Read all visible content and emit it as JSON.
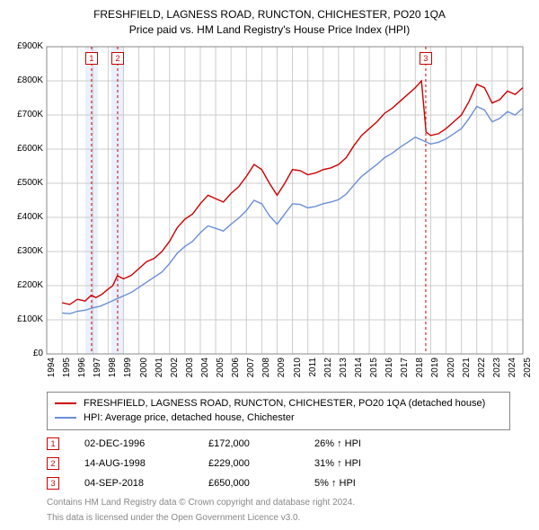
{
  "title1": "FRESHFIELD, LAGNESS ROAD, RUNCTON, CHICHESTER, PO20 1QA",
  "title2": "Price paid vs. HM Land Registry's House Price Index (HPI)",
  "chart": {
    "type": "line",
    "background_color": "#ffffff",
    "grid_color": "#cccccc",
    "yaxis": {
      "min": 0,
      "max": 900,
      "step": 100,
      "labels": [
        "£0",
        "£100K",
        "£200K",
        "£300K",
        "£400K",
        "£500K",
        "£600K",
        "£700K",
        "£800K",
        "£900K"
      ]
    },
    "xaxis": {
      "min": 1994,
      "max": 2025,
      "step": 1,
      "labels": [
        "1994",
        "1995",
        "1996",
        "1997",
        "1998",
        "1999",
        "2000",
        "2001",
        "2002",
        "2003",
        "2004",
        "2005",
        "2006",
        "2007",
        "2008",
        "2009",
        "2010",
        "2011",
        "2012",
        "2013",
        "2014",
        "2015",
        "2016",
        "2017",
        "2018",
        "2019",
        "2020",
        "2021",
        "2022",
        "2023",
        "2024",
        "2025"
      ]
    },
    "band_fill": "#e8eefc",
    "event_line_color": "#cc0000",
    "event_line_dash": "3,3",
    "series": [
      {
        "name": "red",
        "color": "#cc0000",
        "width": 1.4,
        "points": [
          [
            1995.0,
            150
          ],
          [
            1995.5,
            145
          ],
          [
            1996.0,
            160
          ],
          [
            1996.5,
            155
          ],
          [
            1996.9,
            172
          ],
          [
            1997.2,
            165
          ],
          [
            1997.6,
            175
          ],
          [
            1998.0,
            190
          ],
          [
            1998.3,
            200
          ],
          [
            1998.6,
            229
          ],
          [
            1999.0,
            220
          ],
          [
            1999.5,
            230
          ],
          [
            2000.0,
            250
          ],
          [
            2000.5,
            270
          ],
          [
            2001.0,
            280
          ],
          [
            2001.5,
            300
          ],
          [
            2002.0,
            330
          ],
          [
            2002.5,
            370
          ],
          [
            2003.0,
            395
          ],
          [
            2003.5,
            410
          ],
          [
            2004.0,
            440
          ],
          [
            2004.5,
            465
          ],
          [
            2005.0,
            455
          ],
          [
            2005.5,
            445
          ],
          [
            2006.0,
            470
          ],
          [
            2006.5,
            490
          ],
          [
            2007.0,
            520
          ],
          [
            2007.5,
            555
          ],
          [
            2008.0,
            540
          ],
          [
            2008.5,
            500
          ],
          [
            2009.0,
            465
          ],
          [
            2009.5,
            500
          ],
          [
            2010.0,
            540
          ],
          [
            2010.5,
            537
          ],
          [
            2011.0,
            525
          ],
          [
            2011.5,
            530
          ],
          [
            2012.0,
            540
          ],
          [
            2012.5,
            545
          ],
          [
            2013.0,
            555
          ],
          [
            2013.5,
            575
          ],
          [
            2014.0,
            610
          ],
          [
            2014.5,
            640
          ],
          [
            2015.0,
            660
          ],
          [
            2015.5,
            680
          ],
          [
            2016.0,
            705
          ],
          [
            2016.5,
            720
          ],
          [
            2017.0,
            740
          ],
          [
            2017.5,
            760
          ],
          [
            2018.0,
            780
          ],
          [
            2018.4,
            800
          ],
          [
            2018.7,
            650
          ],
          [
            2019.0,
            640
          ],
          [
            2019.5,
            645
          ],
          [
            2020.0,
            660
          ],
          [
            2020.5,
            680
          ],
          [
            2021.0,
            700
          ],
          [
            2021.5,
            740
          ],
          [
            2022.0,
            790
          ],
          [
            2022.5,
            780
          ],
          [
            2023.0,
            735
          ],
          [
            2023.5,
            745
          ],
          [
            2024.0,
            770
          ],
          [
            2024.5,
            760
          ],
          [
            2025.0,
            780
          ]
        ]
      },
      {
        "name": "blue",
        "color": "#6a8fd8",
        "width": 1.4,
        "points": [
          [
            1995.0,
            120
          ],
          [
            1995.5,
            118
          ],
          [
            1996.0,
            125
          ],
          [
            1996.5,
            128
          ],
          [
            1997.0,
            135
          ],
          [
            1997.5,
            140
          ],
          [
            1998.0,
            150
          ],
          [
            1998.5,
            160
          ],
          [
            1999.0,
            170
          ],
          [
            1999.5,
            180
          ],
          [
            2000.0,
            195
          ],
          [
            2000.5,
            210
          ],
          [
            2001.0,
            225
          ],
          [
            2001.5,
            240
          ],
          [
            2002.0,
            265
          ],
          [
            2002.5,
            295
          ],
          [
            2003.0,
            315
          ],
          [
            2003.5,
            330
          ],
          [
            2004.0,
            355
          ],
          [
            2004.5,
            375
          ],
          [
            2005.0,
            368
          ],
          [
            2005.5,
            360
          ],
          [
            2006.0,
            380
          ],
          [
            2006.5,
            398
          ],
          [
            2007.0,
            420
          ],
          [
            2007.5,
            450
          ],
          [
            2008.0,
            440
          ],
          [
            2008.5,
            405
          ],
          [
            2009.0,
            380
          ],
          [
            2009.5,
            410
          ],
          [
            2010.0,
            440
          ],
          [
            2010.5,
            438
          ],
          [
            2011.0,
            428
          ],
          [
            2011.5,
            432
          ],
          [
            2012.0,
            440
          ],
          [
            2012.5,
            445
          ],
          [
            2013.0,
            452
          ],
          [
            2013.5,
            468
          ],
          [
            2014.0,
            495
          ],
          [
            2014.5,
            520
          ],
          [
            2015.0,
            538
          ],
          [
            2015.5,
            555
          ],
          [
            2016.0,
            575
          ],
          [
            2016.5,
            588
          ],
          [
            2017.0,
            605
          ],
          [
            2017.5,
            620
          ],
          [
            2018.0,
            635
          ],
          [
            2018.5,
            625
          ],
          [
            2019.0,
            615
          ],
          [
            2019.5,
            620
          ],
          [
            2020.0,
            630
          ],
          [
            2020.5,
            645
          ],
          [
            2021.0,
            660
          ],
          [
            2021.5,
            690
          ],
          [
            2022.0,
            725
          ],
          [
            2022.5,
            715
          ],
          [
            2023.0,
            680
          ],
          [
            2023.5,
            690
          ],
          [
            2024.0,
            710
          ],
          [
            2024.5,
            700
          ],
          [
            2025.0,
            720
          ]
        ]
      }
    ],
    "event_markers": [
      {
        "n": "1",
        "year": 1996.92
      },
      {
        "n": "2",
        "year": 1998.62
      },
      {
        "n": "3",
        "year": 2018.68
      }
    ]
  },
  "legend": {
    "items": [
      {
        "color": "#cc0000",
        "label": "FRESHFIELD, LAGNESS ROAD, RUNCTON, CHICHESTER, PO20 1QA (detached house)"
      },
      {
        "color": "#6a8fd8",
        "label": "HPI: Average price, detached house, Chichester"
      }
    ]
  },
  "events": [
    {
      "n": "1",
      "date": "02-DEC-1996",
      "price": "£172,000",
      "delta": "26% ↑ HPI"
    },
    {
      "n": "2",
      "date": "14-AUG-1998",
      "price": "£229,000",
      "delta": "31% ↑ HPI"
    },
    {
      "n": "3",
      "date": "04-SEP-2018",
      "price": "£650,000",
      "delta": "5% ↑ HPI"
    }
  ],
  "footer1": "Contains HM Land Registry data © Crown copyright and database right 2024.",
  "footer2": "This data is licensed under the Open Government Licence v3.0."
}
